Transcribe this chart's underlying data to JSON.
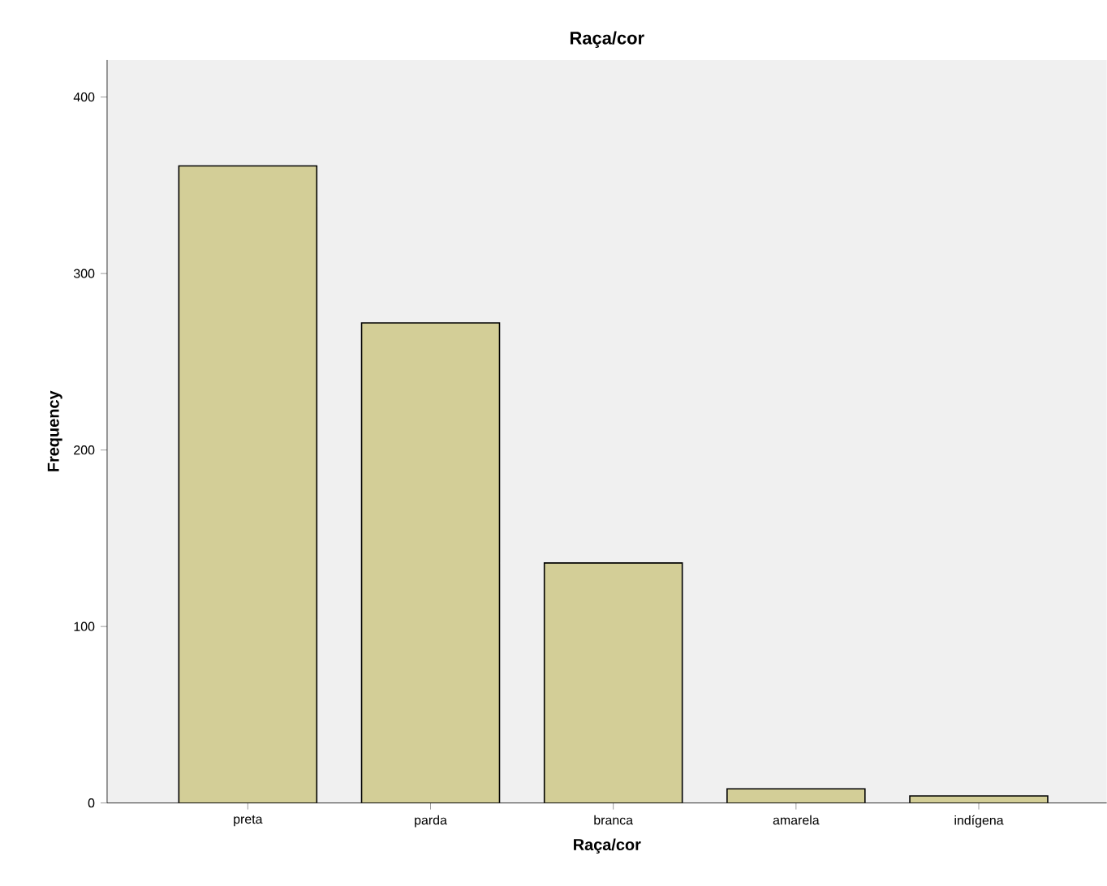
{
  "chart_data": {
    "type": "bar",
    "title": "Raça/cor",
    "xlabel": "Raça/cor",
    "ylabel": "Frequency",
    "categories": [
      "preta",
      "parda",
      "branca",
      "amarela",
      "indígena"
    ],
    "values": [
      361,
      272,
      136,
      8,
      4
    ],
    "color": "#d3ce97",
    "ylim": [
      0,
      421
    ],
    "yticks": [
      0,
      100,
      200,
      300,
      400
    ]
  }
}
